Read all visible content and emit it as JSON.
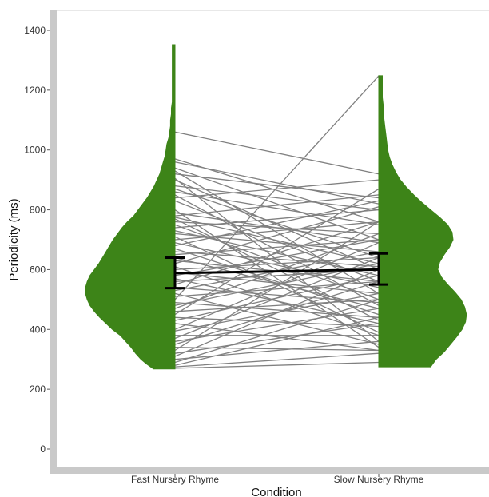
{
  "chart_data": {
    "type": "violin",
    "xlabel": "Condition",
    "ylabel": "Periodicity (ms)",
    "categories": [
      "Fast Nursery Rhyme",
      "Slow Nursery Rhyme"
    ],
    "yticks": [
      0,
      200,
      400,
      600,
      800,
      1000,
      1200,
      1400
    ],
    "ylim": [
      -50,
      1470
    ],
    "colors": {
      "violin": "#3d8418",
      "lines": "#808080",
      "summary": "#000000",
      "axis": "#c9c9c9"
    },
    "summary": {
      "means": [
        588,
        600
      ],
      "lower": [
        538,
        550
      ],
      "upper": [
        640,
        654
      ]
    },
    "density": {
      "fast": {
        "y": [
          268,
          285,
          300,
          320,
          340,
          360,
          380,
          400,
          420,
          440,
          460,
          480,
          500,
          520,
          540,
          560,
          580,
          600,
          620,
          640,
          660,
          680,
          700,
          720,
          740,
          760,
          780,
          800,
          820,
          840,
          860,
          880,
          900,
          920,
          940,
          960,
          980,
          1000,
          1020,
          1040,
          1060,
          1080,
          1100,
          1120,
          1140,
          1160,
          1180,
          1200,
          1220,
          1240,
          1260,
          1280,
          1300,
          1320,
          1340,
          1352
        ],
        "w": [
          0.24,
          0.32,
          0.38,
          0.44,
          0.49,
          0.55,
          0.61,
          0.7,
          0.77,
          0.84,
          0.9,
          0.95,
          0.98,
          1.0,
          1.0,
          0.98,
          0.95,
          0.9,
          0.85,
          0.81,
          0.77,
          0.73,
          0.69,
          0.64,
          0.59,
          0.53,
          0.46,
          0.41,
          0.36,
          0.31,
          0.27,
          0.23,
          0.2,
          0.17,
          0.15,
          0.13,
          0.11,
          0.1,
          0.09,
          0.07,
          0.06,
          0.05,
          0.05,
          0.04,
          0.04,
          0.03,
          0.03,
          0.03,
          0.03,
          0.03,
          0.03,
          0.03,
          0.03,
          0.03,
          0.03,
          0.03
        ]
      },
      "slow": {
        "y": [
          275,
          300,
          325,
          350,
          375,
          400,
          425,
          450,
          475,
          500,
          525,
          550,
          575,
          600,
          625,
          650,
          675,
          700,
          725,
          750,
          775,
          800,
          825,
          850,
          875,
          900,
          925,
          950,
          975,
          1000,
          1025,
          1050,
          1075,
          1100,
          1125,
          1150,
          1175,
          1200,
          1225,
          1248
        ],
        "w": [
          0.58,
          0.64,
          0.73,
          0.8,
          0.87,
          0.93,
          0.97,
          0.98,
          0.96,
          0.92,
          0.85,
          0.77,
          0.7,
          0.66,
          0.68,
          0.73,
          0.79,
          0.83,
          0.82,
          0.77,
          0.68,
          0.58,
          0.48,
          0.39,
          0.31,
          0.24,
          0.19,
          0.15,
          0.12,
          0.1,
          0.09,
          0.08,
          0.07,
          0.06,
          0.05,
          0.05,
          0.04,
          0.04,
          0.04,
          0.04
        ]
      }
    },
    "pairs": [
      [
        1060,
        920
      ],
      [
        970,
        760
      ],
      [
        960,
        820
      ],
      [
        940,
        700
      ],
      [
        930,
        520
      ],
      [
        920,
        840
      ],
      [
        905,
        360
      ],
      [
        900,
        600
      ],
      [
        880,
        800
      ],
      [
        870,
        640
      ],
      [
        860,
        750
      ],
      [
        850,
        480
      ],
      [
        840,
        900
      ],
      [
        830,
        560
      ],
      [
        800,
        340
      ],
      [
        790,
        690
      ],
      [
        780,
        850
      ],
      [
        775,
        620
      ],
      [
        770,
        430
      ],
      [
        760,
        720
      ],
      [
        750,
        500
      ],
      [
        740,
        800
      ],
      [
        730,
        580
      ],
      [
        720,
        660
      ],
      [
        710,
        390
      ],
      [
        700,
        760
      ],
      [
        690,
        540
      ],
      [
        680,
        830
      ],
      [
        670,
        450
      ],
      [
        660,
        610
      ],
      [
        650,
        700
      ],
      [
        640,
        470
      ],
      [
        630,
        560
      ],
      [
        620,
        810
      ],
      [
        610,
        380
      ],
      [
        600,
        640
      ],
      [
        590,
        520
      ],
      [
        580,
        700
      ],
      [
        570,
        420
      ],
      [
        560,
        600
      ],
      [
        550,
        760
      ],
      [
        540,
        490
      ],
      [
        530,
        660
      ],
      [
        520,
        350
      ],
      [
        510,
        560
      ],
      [
        500,
        1248
      ],
      [
        490,
        440
      ],
      [
        480,
        620
      ],
      [
        470,
        720
      ],
      [
        460,
        500
      ],
      [
        450,
        870
      ],
      [
        440,
        410
      ],
      [
        430,
        580
      ],
      [
        420,
        330
      ],
      [
        400,
        690
      ],
      [
        395,
        520
      ],
      [
        380,
        380
      ],
      [
        370,
        640
      ],
      [
        360,
        470
      ],
      [
        350,
        560
      ],
      [
        340,
        330
      ],
      [
        330,
        760
      ],
      [
        320,
        420
      ],
      [
        310,
        600
      ],
      [
        300,
        360
      ],
      [
        290,
        500
      ],
      [
        280,
        440
      ],
      [
        275,
        320
      ],
      [
        270,
        290
      ]
    ]
  }
}
